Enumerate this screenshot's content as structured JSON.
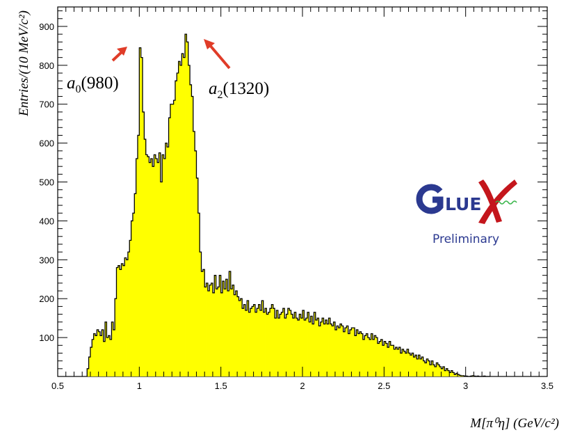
{
  "chart_data": {
    "type": "bar",
    "style": "histogram",
    "xlabel": "M[π⁰η] (GeV/c²)",
    "ylabel": "Entries/(10 MeV/c²)",
    "xlim": [
      0.5,
      3.5
    ],
    "ylim": [
      0,
      950
    ],
    "xticks": [
      "0.5",
      "1",
      "1.5",
      "2",
      "2.5",
      "3",
      "3.5"
    ],
    "yticks": [
      "100",
      "200",
      "300",
      "400",
      "500",
      "600",
      "700",
      "800",
      "900"
    ],
    "grid": false,
    "bin_width": 0.01,
    "x": [
      0.68,
      0.69,
      0.7,
      0.71,
      0.72,
      0.73,
      0.74,
      0.75,
      0.76,
      0.77,
      0.78,
      0.79,
      0.8,
      0.81,
      0.82,
      0.83,
      0.84,
      0.85,
      0.86,
      0.87,
      0.88,
      0.89,
      0.9,
      0.91,
      0.92,
      0.93,
      0.94,
      0.95,
      0.96,
      0.97,
      0.98,
      0.99,
      1.0,
      1.01,
      1.02,
      1.03,
      1.04,
      1.05,
      1.06,
      1.07,
      1.08,
      1.09,
      1.1,
      1.11,
      1.12,
      1.13,
      1.14,
      1.15,
      1.16,
      1.17,
      1.18,
      1.19,
      1.2,
      1.21,
      1.22,
      1.23,
      1.24,
      1.25,
      1.26,
      1.27,
      1.28,
      1.29,
      1.3,
      1.31,
      1.32,
      1.33,
      1.34,
      1.35,
      1.36,
      1.37,
      1.38,
      1.39,
      1.4,
      1.41,
      1.42,
      1.43,
      1.44,
      1.45,
      1.46,
      1.47,
      1.48,
      1.49,
      1.5,
      1.51,
      1.52,
      1.53,
      1.54,
      1.55,
      1.56,
      1.57,
      1.58,
      1.59,
      1.6,
      1.61,
      1.62,
      1.63,
      1.64,
      1.65,
      1.66,
      1.67,
      1.68,
      1.69,
      1.7,
      1.71,
      1.72,
      1.73,
      1.74,
      1.75,
      1.76,
      1.77,
      1.78,
      1.79,
      1.8,
      1.81,
      1.82,
      1.83,
      1.84,
      1.85,
      1.86,
      1.87,
      1.88,
      1.89,
      1.9,
      1.91,
      1.92,
      1.93,
      1.94,
      1.95,
      1.96,
      1.97,
      1.98,
      1.99,
      2.0,
      2.01,
      2.02,
      2.03,
      2.04,
      2.05,
      2.06,
      2.07,
      2.08,
      2.09,
      2.1,
      2.11,
      2.12,
      2.13,
      2.14,
      2.15,
      2.16,
      2.17,
      2.18,
      2.19,
      2.2,
      2.21,
      2.22,
      2.23,
      2.24,
      2.25,
      2.26,
      2.27,
      2.28,
      2.29,
      2.3,
      2.31,
      2.32,
      2.33,
      2.34,
      2.35,
      2.36,
      2.37,
      2.38,
      2.39,
      2.4,
      2.41,
      2.42,
      2.43,
      2.44,
      2.45,
      2.46,
      2.47,
      2.48,
      2.49,
      2.5,
      2.51,
      2.52,
      2.53,
      2.54,
      2.55,
      2.56,
      2.57,
      2.58,
      2.59,
      2.6,
      2.61,
      2.62,
      2.63,
      2.64,
      2.65,
      2.66,
      2.67,
      2.68,
      2.69,
      2.7,
      2.71,
      2.72,
      2.73,
      2.74,
      2.75,
      2.76,
      2.77,
      2.78,
      2.79,
      2.8,
      2.81,
      2.82,
      2.83,
      2.84,
      2.85,
      2.86,
      2.87,
      2.88,
      2.89,
      2.9,
      2.91,
      2.92,
      2.93,
      2.94,
      2.95,
      2.96,
      2.97,
      2.98,
      2.99,
      3.0,
      3.01,
      3.02,
      3.03,
      3.04,
      3.05,
      3.06,
      3.07,
      3.08,
      3.09,
      3.1,
      3.11,
      3.12,
      3.13,
      3.14
    ],
    "values": [
      20,
      50,
      75,
      95,
      110,
      105,
      120,
      115,
      105,
      120,
      90,
      140,
      100,
      105,
      95,
      140,
      120,
      200,
      280,
      285,
      275,
      290,
      285,
      305,
      300,
      320,
      350,
      400,
      420,
      470,
      560,
      620,
      845,
      820,
      680,
      610,
      570,
      565,
      550,
      560,
      540,
      570,
      560,
      550,
      575,
      500,
      570,
      560,
      600,
      590,
      665,
      700,
      700,
      710,
      760,
      780,
      810,
      800,
      830,
      820,
      880,
      860,
      800,
      750,
      720,
      630,
      580,
      510,
      420,
      320,
      270,
      275,
      230,
      240,
      220,
      235,
      240,
      215,
      260,
      225,
      230,
      260,
      215,
      245,
      225,
      250,
      220,
      270,
      225,
      235,
      210,
      220,
      205,
      195,
      200,
      175,
      185,
      170,
      195,
      165,
      175,
      180,
      185,
      165,
      175,
      185,
      170,
      195,
      165,
      175,
      160,
      165,
      175,
      185,
      175,
      150,
      170,
      150,
      160,
      165,
      175,
      150,
      160,
      175,
      170,
      160,
      150,
      165,
      150,
      145,
      160,
      150,
      170,
      145,
      150,
      165,
      140,
      155,
      135,
      165,
      145,
      150,
      130,
      140,
      150,
      135,
      145,
      135,
      150,
      135,
      130,
      140,
      120,
      130,
      125,
      135,
      130,
      115,
      125,
      130,
      110,
      120,
      125,
      125,
      105,
      120,
      110,
      115,
      110,
      95,
      105,
      110,
      100,
      95,
      110,
      95,
      105,
      100,
      85,
      90,
      95,
      80,
      90,
      85,
      75,
      90,
      80,
      80,
      70,
      75,
      70,
      75,
      60,
      70,
      65,
      60,
      70,
      60,
      55,
      60,
      50,
      55,
      45,
      55,
      45,
      50,
      40,
      35,
      45,
      40,
      30,
      40,
      30,
      25,
      35,
      30,
      25,
      20,
      25,
      15,
      20,
      15,
      10,
      15,
      10,
      5,
      8,
      5,
      3,
      2,
      2,
      1,
      1,
      0,
      0,
      1,
      2,
      1,
      0,
      1,
      0,
      0,
      0,
      1,
      0,
      0,
      0
    ]
  },
  "annotations": {
    "a0_base": "a",
    "a0_sub": "0",
    "a0_mass": "(980)",
    "a2_base": "a",
    "a2_sub": "2",
    "a2_mass": "(1320)",
    "arrow_color": "#e03c28"
  },
  "logo": {
    "word": "LUE",
    "prelim": "Preliminary",
    "blue": "#2b3990",
    "red": "#c4161c",
    "green": "#39b54a"
  },
  "colors": {
    "fill": "#ffff00",
    "line": "#000000"
  }
}
